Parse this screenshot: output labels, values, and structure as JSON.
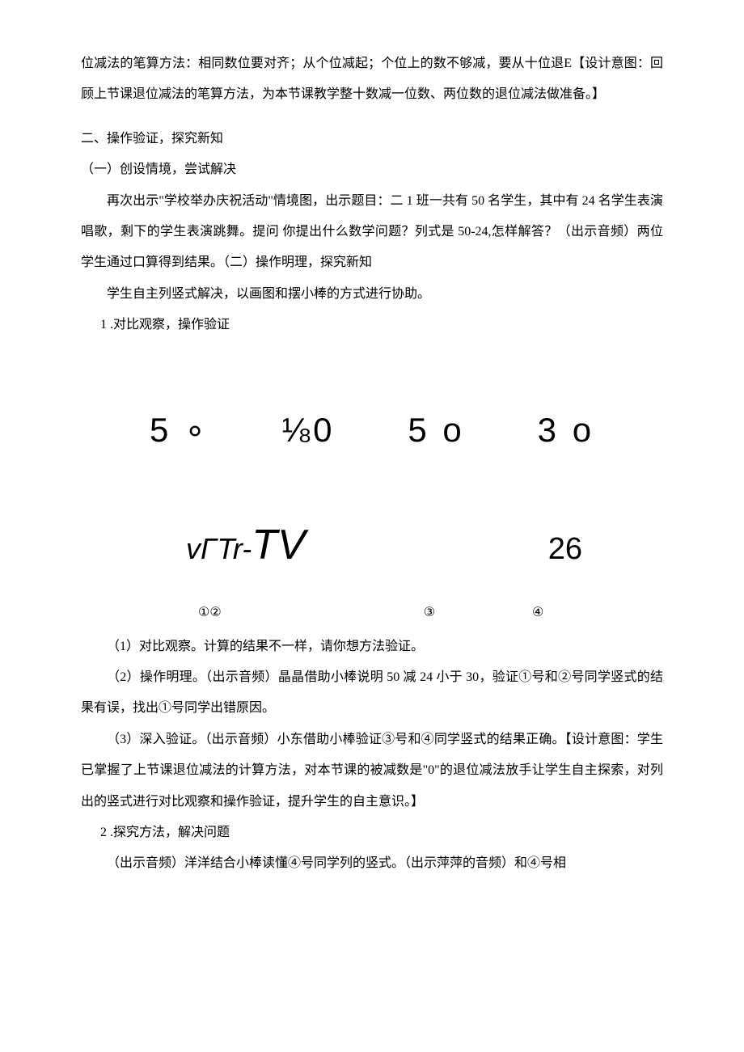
{
  "intro": {
    "p1": "位减法的笔算方法：相同数位要对齐；从个位减起；个位上的数不够减，要从十位退E【设计意图：回顾上节课退位减法的笔算方法，为本节课教学整十数减一位数、两位数的退位减法做准备。】"
  },
  "section2": {
    "heading": "二、操作验证，探究新知",
    "sub1_heading": "（一）创设情境，尝试解决",
    "sub1_p1": "再次出示\"学校举办庆祝活动\"情境图，出示题目：二 1 班一共有 50 名学生，其中有 24 名学生表演唱歌，剩下的学生表演跳舞。提问 你提出什么数学问题？列式是 50-24,怎样解答？（出示音频）两位学生通过口算得到结果。（二）操作明理，探究新知",
    "sub1_p2": "学生自主列竖式解决，以画图和摆小棒的方式进行协助。",
    "item1_heading": "1 .对比观察，操作验证"
  },
  "mathDisplay": {
    "items": [
      "5 ∘",
      "⅛0",
      "5 o",
      "3 o"
    ],
    "resultLeftPrefix": "vΓTr-",
    "resultLeftBig": "TV",
    "resultRight": "26",
    "circlesLabel12": "①②",
    "circlesLabel3": "③",
    "circlesLabel4": "④"
  },
  "analysis": {
    "p1": "（1）对比观察。计算的结果不一样，请你想方法验证。",
    "p2": "（2）操作明理。（出示音频）晶晶借助小棒说明 50 减 24 小于 30，验证①号和②号同学竖式的结果有误，找出①号同学出错原因。",
    "p3": "（3）深入验证。（出示音频）小东借助小棒验证③号和④同学竖式的结果正确。【设计意图：学生已掌握了上节课退位减法的计算方法，对本节课的被减数是\"0\"的退位减法放手让学生自主探索，对列出的竖式进行对比观察和操作验证，提升学生的自主意识。】",
    "item2_heading": "2 .探究方法，解决问题",
    "item2_p1": "（出示音频）洋洋结合小棒读懂④号同学列的竖式。（出示萍萍的音频）和④号相"
  }
}
